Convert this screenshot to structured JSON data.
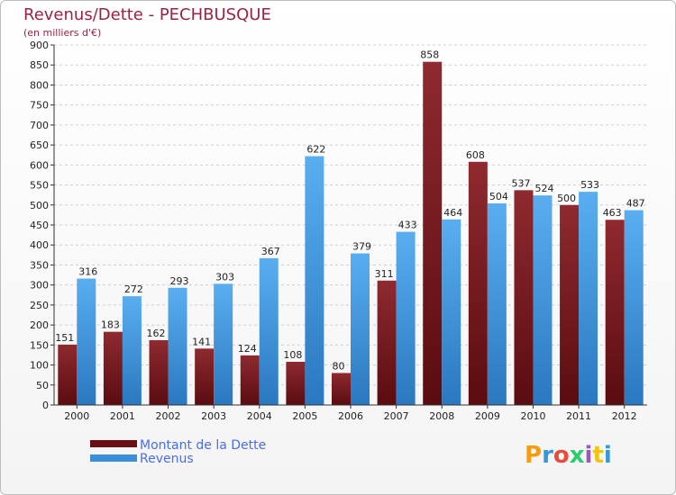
{
  "chart_data": {
    "type": "bar",
    "title": "Revenus/Dette - PECHBUSQUE",
    "subtitle": "(en milliers d'€)",
    "categories": [
      "2000",
      "2001",
      "2002",
      "2003",
      "2004",
      "2005",
      "2006",
      "2007",
      "2008",
      "2009",
      "2010",
      "2011",
      "2012"
    ],
    "series": [
      {
        "name": "Montant de la Dette",
        "color": "#7a1a1e",
        "values": [
          151,
          183,
          162,
          141,
          124,
          108,
          80,
          311,
          858,
          608,
          537,
          500,
          463
        ]
      },
      {
        "name": "Revenus",
        "color": "#3a8fd8",
        "values": [
          316,
          272,
          293,
          303,
          367,
          622,
          379,
          433,
          464,
          504,
          524,
          533,
          487
        ]
      }
    ],
    "ylim": [
      0,
      900
    ],
    "yticks": [
      0,
      50,
      100,
      150,
      200,
      250,
      300,
      350,
      400,
      450,
      500,
      550,
      600,
      650,
      700,
      750,
      800,
      850,
      900
    ],
    "grid": true,
    "legend": "bottom-left"
  },
  "logo": {
    "text": "Proxiti",
    "letters": [
      "P",
      "r",
      "o",
      "x",
      "i",
      "t",
      "i"
    ],
    "colors": [
      "#f39c12",
      "#3498db",
      "#e74c3c",
      "#2ecc71",
      "#9b59b6",
      "#f1c40f",
      "#3498db"
    ]
  }
}
